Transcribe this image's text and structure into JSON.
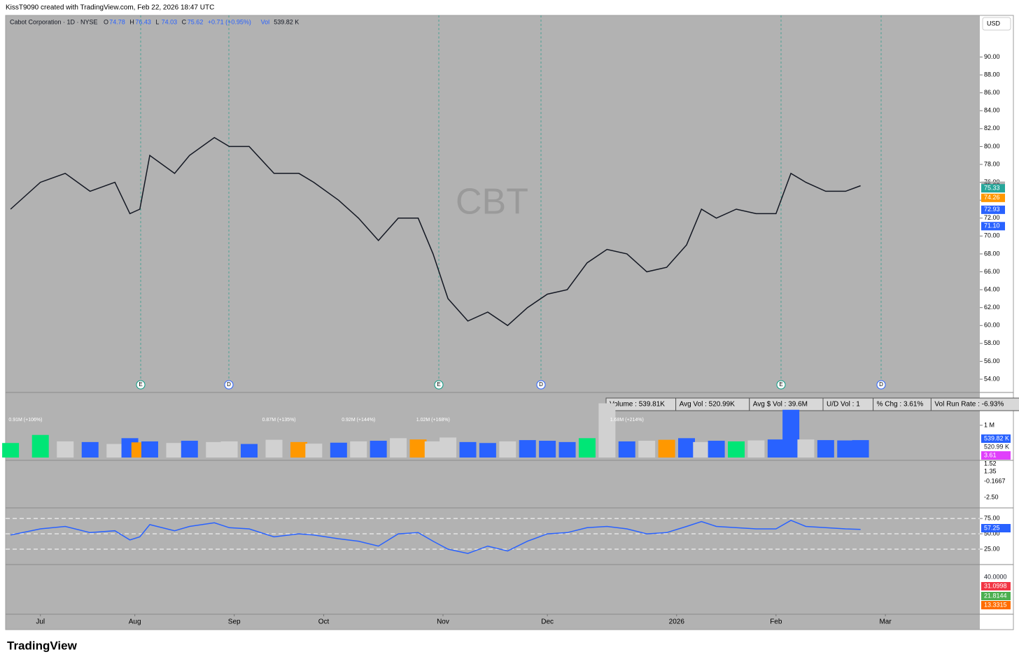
{
  "header": {
    "attribution": "KissT9090 created with TradingView.com, Feb 22, 2026 18:47 UTC",
    "symbol": "Cabot Corporation · 1D · NYSE",
    "ohlc": [
      "O",
      "74.78",
      "H",
      "76.43",
      "L",
      "74.03",
      "C",
      "75.62",
      "+0.71 (+0.95%)",
      "Vol",
      "539.82 K"
    ],
    "watermark": "CBT",
    "currency": "USD"
  },
  "info_box": [
    "Volume : 539.81K",
    "Avg Vol : 520.99K",
    "Avg $ Vol : 39.6M",
    "U/D Vol : 1",
    "% Chg : 3.61%",
    "Vol Run Rate : -6.93%"
  ],
  "events": [
    "E",
    "D",
    "E",
    "D",
    "E",
    "D"
  ],
  "chart_data": [
    {
      "type": "line",
      "color": "#131722",
      "x": [
        -6,
        0,
        5,
        10,
        15,
        18,
        20,
        22,
        27,
        30,
        35,
        38,
        42,
        47,
        52,
        55,
        60,
        64,
        68,
        72,
        76,
        79,
        82,
        86,
        90,
        94,
        98,
        102,
        106,
        110,
        114,
        118,
        122,
        126,
        130,
        133,
        136,
        140,
        144,
        148,
        151,
        154,
        158,
        162,
        165
      ],
      "values": [
        73,
        76,
        77,
        75,
        76,
        72.5,
        73,
        79,
        77,
        79,
        81,
        80,
        80,
        77,
        77,
        76,
        74,
        72,
        69.5,
        72,
        72,
        68,
        63,
        60.5,
        61.5,
        60,
        62,
        63.5,
        64,
        67,
        68.5,
        68,
        66,
        66.5,
        69,
        73,
        72,
        73,
        72.5,
        72.5,
        77,
        76,
        75,
        75,
        75.62
      ],
      "xlim": [
        -7,
        189
      ],
      "ylim": [
        53.3,
        93.4
      ],
      "xticks": [
        {
          "value": 0,
          "label": "Jul"
        },
        {
          "value": 19,
          "label": "Aug"
        },
        {
          "value": 39,
          "label": "Sep"
        },
        {
          "value": 57,
          "label": "Oct"
        },
        {
          "value": 81,
          "label": "Nov"
        },
        {
          "value": 102,
          "label": "Dec"
        },
        {
          "value": 128,
          "label": "2026"
        },
        {
          "value": 148,
          "label": "Feb"
        },
        {
          "value": 170,
          "label": "Mar"
        }
      ],
      "yticks": [
        {
          "value": 54,
          "label": "54.00"
        },
        {
          "value": 56,
          "label": "56.00"
        },
        {
          "value": 58,
          "label": "58.00"
        },
        {
          "value": 60,
          "label": "60.00"
        },
        {
          "value": 62,
          "label": "62.00"
        },
        {
          "value": 64,
          "label": "64.00"
        },
        {
          "value": 66,
          "label": "66.00"
        },
        {
          "value": 68,
          "label": "68.00"
        },
        {
          "value": 70,
          "label": "70.00"
        },
        {
          "value": 72,
          "label": "72.00"
        },
        {
          "value": 74,
          "label": "74.00"
        },
        {
          "value": 76,
          "label": "76.00"
        },
        {
          "value": 78,
          "label": "78.00"
        },
        {
          "value": 80,
          "label": "80.00"
        },
        {
          "value": 82,
          "label": "82.00"
        },
        {
          "value": 84,
          "label": "84.00"
        },
        {
          "value": 86,
          "label": "86.00"
        },
        {
          "value": 88,
          "label": "88.00"
        },
        {
          "value": 90,
          "label": "90.00"
        }
      ],
      "price_labels": [
        {
          "value": 75.62,
          "label": "75.62",
          "color": "#ffffff"
        },
        {
          "value": 75.33,
          "label": "75.33",
          "color": "#26a69a"
        },
        {
          "value": 74.26,
          "label": "74.26",
          "color": "#ff9800"
        },
        {
          "value": 72.93,
          "label": "72.93",
          "color": "#2962ff"
        },
        {
          "value": 71.1,
          "label": "71.10",
          "color": "#2962ff"
        }
      ]
    },
    {
      "type": "bar",
      "x": [
        -6,
        0,
        5,
        10,
        15,
        18,
        20,
        22,
        27,
        30,
        35,
        38,
        42,
        47,
        52,
        55,
        60,
        64,
        68,
        72,
        76,
        79,
        82,
        86,
        90,
        94,
        98,
        102,
        106,
        110,
        114,
        118,
        122,
        126,
        130,
        133,
        136,
        140,
        144,
        148,
        151,
        154,
        158,
        162,
        165
      ],
      "values": [
        450,
        700,
        500,
        480,
        420,
        600,
        470,
        500,
        450,
        520,
        480,
        500,
        420,
        550,
        480,
        430,
        460,
        500,
        520,
        600,
        560,
        500,
        620,
        480,
        450,
        500,
        540,
        520,
        480,
        600,
        1680,
        500,
        520,
        550,
        600,
        480,
        520,
        500,
        530,
        560,
        1480,
        560,
        540,
        530,
        540
      ],
      "colors": [
        "#00e676",
        "#00e676",
        "#d1d1d1",
        "#2962ff",
        "#d1d1d1",
        "#2962ff",
        "#ff9800",
        "#2962ff",
        "#d1d1d1",
        "#2962ff",
        "#d1d1d1",
        "#d1d1d1",
        "#2962ff",
        "#d1d1d1",
        "#ff9800",
        "#d1d1d1",
        "#2962ff",
        "#d1d1d1",
        "#2962ff",
        "#d1d1d1",
        "#ff9800",
        "#d1d1d1",
        "#d1d1d1",
        "#2962ff",
        "#2962ff",
        "#d1d1d1",
        "#2962ff",
        "#2962ff",
        "#2962ff",
        "#00e676",
        "#d1d1d1",
        "#2962ff",
        "#d1d1d1",
        "#ff9800",
        "#2962ff",
        "#d1d1d1",
        "#2962ff",
        "#00e676",
        "#d1d1d1",
        "#2962ff",
        "#2962ff",
        "#d1d1d1",
        "#2962ff",
        "#2962ff",
        "#2962ff"
      ],
      "xlim": [
        -7,
        189
      ],
      "ylim": [
        0,
        1930
      ],
      "yticks": [
        {
          "value": 1000,
          "label": "1 M"
        }
      ],
      "annotations": [
        {
          "x": -3,
          "label": "0.91M (+106%)"
        },
        {
          "x": 48,
          "label": "0.87M (+135%)"
        },
        {
          "x": 64,
          "label": "0.92M (+144%)"
        },
        {
          "x": 79,
          "label": "1.02M (+168%)"
        },
        {
          "x": 118,
          "label": "1.68M (+214%)"
        }
      ],
      "last_labels": [
        {
          "label": "539.82 K",
          "color": "#2962ff"
        },
        {
          "label": "520.99 K",
          "color": "#ffffff"
        },
        {
          "label": "3.61",
          "color": "#e040fb"
        }
      ]
    },
    {
      "type": "line",
      "color": "#2962ff",
      "x": [
        -6,
        0,
        5,
        10,
        15,
        18,
        20,
        22,
        27,
        30,
        35,
        38,
        42,
        47,
        52,
        55,
        60,
        64,
        68,
        72,
        76,
        79,
        82,
        86,
        90,
        94,
        98,
        102,
        106,
        110,
        114,
        118,
        122,
        126,
        130,
        133,
        136,
        140,
        144,
        148,
        151,
        154,
        158,
        162,
        165
      ],
      "values": [
        48,
        58,
        62,
        52,
        55,
        40,
        45,
        65,
        55,
        62,
        68,
        60,
        58,
        45,
        50,
        48,
        42,
        38,
        30,
        50,
        52,
        38,
        25,
        18,
        30,
        22,
        38,
        50,
        52,
        60,
        62,
        58,
        50,
        52,
        62,
        70,
        62,
        60,
        58,
        58,
        72,
        62,
        60,
        58,
        57.25
      ],
      "xlim": [
        -7,
        189
      ],
      "ylim": [
        1,
        90
      ],
      "yticks": [
        {
          "value": 75,
          "label": "75.00"
        },
        {
          "value": 50,
          "label": "50.00"
        },
        {
          "value": 25,
          "label": "25.00"
        }
      ],
      "last_labels": [
        {
          "label": "57.25",
          "color": "#2962ff"
        }
      ]
    }
  ],
  "macd_labels": [
    "1.52",
    "1.35",
    "-0.1667",
    "-2.50"
  ],
  "dmi_labels": [
    "40.0000",
    "31.0998",
    "21.8144",
    "13.3315"
  ],
  "footer": "TradingView"
}
